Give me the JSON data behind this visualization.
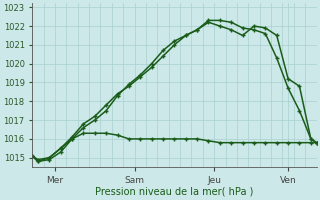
{
  "bg_color": "#cde8e8",
  "grid_color": "#a8d0d0",
  "line_color": "#1a5c1a",
  "xlabel": "Pression niveau de la mer( hPa )",
  "ylim": [
    1014.5,
    1023.2
  ],
  "xlim": [
    0,
    100
  ],
  "yticks": [
    1015,
    1016,
    1017,
    1018,
    1019,
    1020,
    1021,
    1022,
    1023
  ],
  "day_ticks": [
    {
      "x": 8,
      "label": "Mer"
    },
    {
      "x": 36,
      "label": "Sam"
    },
    {
      "x": 64,
      "label": "Jeu"
    },
    {
      "x": 90,
      "label": "Ven"
    }
  ],
  "series1_x": [
    0,
    2,
    6,
    10,
    14,
    18,
    22,
    26,
    30,
    34,
    38,
    42,
    46,
    50,
    54,
    58,
    62,
    66,
    70,
    74,
    78,
    82,
    86,
    90,
    94,
    98,
    100
  ],
  "series1_y": [
    1015.1,
    1014.8,
    1014.9,
    1015.3,
    1016.0,
    1016.3,
    1016.3,
    1016.3,
    1016.2,
    1016.0,
    1016.0,
    1016.0,
    1016.0,
    1016.0,
    1016.0,
    1016.0,
    1015.9,
    1015.8,
    1015.8,
    1015.8,
    1015.8,
    1015.8,
    1015.8,
    1015.8,
    1015.8,
    1015.8,
    1015.8
  ],
  "series2_x": [
    0,
    2,
    6,
    10,
    14,
    18,
    22,
    26,
    30,
    34,
    38,
    42,
    46,
    50,
    54,
    58,
    62,
    66,
    70,
    74,
    78,
    82,
    86,
    90,
    94,
    98,
    100
  ],
  "series2_y": [
    1015.1,
    1014.8,
    1015.0,
    1015.5,
    1016.1,
    1016.8,
    1017.2,
    1017.8,
    1018.4,
    1018.8,
    1019.3,
    1019.8,
    1020.4,
    1021.0,
    1021.5,
    1021.8,
    1022.2,
    1022.0,
    1021.8,
    1021.5,
    1022.0,
    1021.9,
    1021.5,
    1019.2,
    1018.8,
    1016.0,
    1015.8
  ],
  "series3_x": [
    0,
    2,
    6,
    10,
    14,
    18,
    22,
    26,
    30,
    34,
    38,
    42,
    46,
    50,
    54,
    58,
    62,
    66,
    70,
    74,
    78,
    82,
    86,
    90,
    94,
    98,
    100
  ],
  "series3_y": [
    1015.1,
    1014.9,
    1015.0,
    1015.5,
    1016.0,
    1016.6,
    1017.0,
    1017.5,
    1018.3,
    1018.9,
    1019.4,
    1020.0,
    1020.7,
    1021.2,
    1021.5,
    1021.8,
    1022.3,
    1022.3,
    1022.2,
    1021.9,
    1021.8,
    1021.6,
    1020.3,
    1018.7,
    1017.5,
    1016.0,
    1015.8
  ]
}
